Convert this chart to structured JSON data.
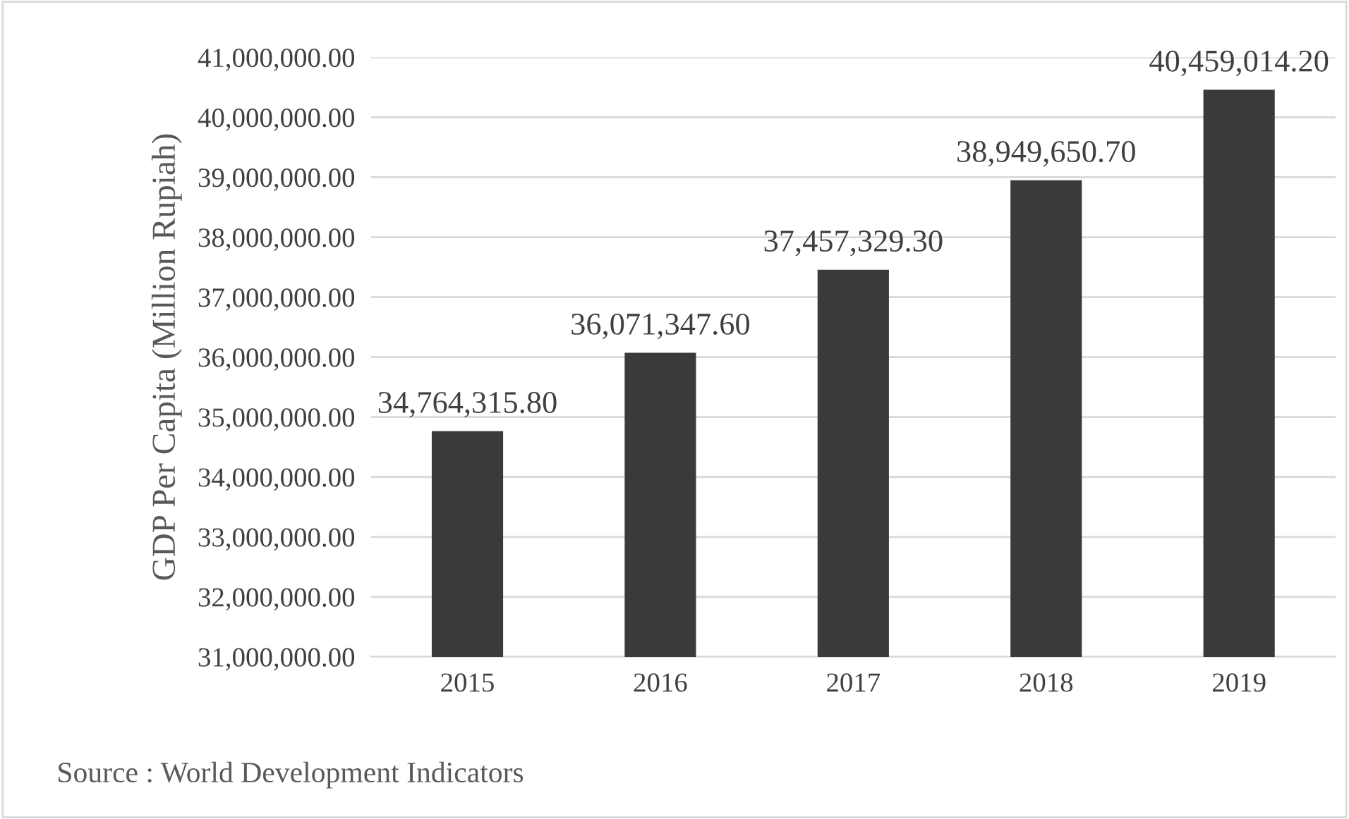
{
  "chart_data": {
    "type": "bar",
    "ylabel": "GDP Per Capita (Million Rupiah)",
    "categories": [
      "2015",
      "2016",
      "2017",
      "2018",
      "2019"
    ],
    "values": [
      34764315.8,
      36071347.6,
      37457329.3,
      38949650.7,
      40459014.2
    ],
    "value_labels": [
      "34,764,315.80",
      "36,071,347.60",
      "37,457,329.30",
      "38,949,650.70",
      "40,459,014.20"
    ],
    "color": "#3a3a3a",
    "ylim": [
      31000000,
      41000000
    ],
    "yticks": [
      {
        "value": 31000000,
        "label": "31,000,000.00"
      },
      {
        "value": 32000000,
        "label": "32,000,000.00"
      },
      {
        "value": 33000000,
        "label": "33,000,000.00"
      },
      {
        "value": 34000000,
        "label": "34,000,000.00"
      },
      {
        "value": 35000000,
        "label": "35,000,000.00"
      },
      {
        "value": 36000000,
        "label": "36,000,000.00"
      },
      {
        "value": 37000000,
        "label": "37,000,000.00"
      },
      {
        "value": 38000000,
        "label": "38,000,000.00"
      },
      {
        "value": 39000000,
        "label": "39,000,000.00"
      },
      {
        "value": 40000000,
        "label": "40,000,000.00"
      },
      {
        "value": 41000000,
        "label": "41,000,000.00"
      }
    ],
    "grid": "y",
    "annotations": [
      "Source : World Development Indicators"
    ]
  }
}
